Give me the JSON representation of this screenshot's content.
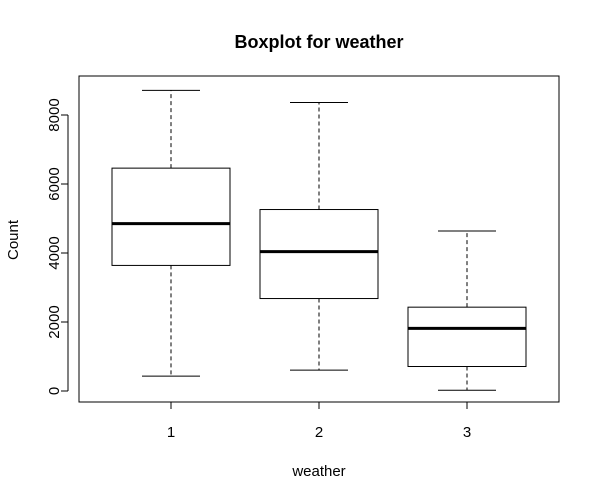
{
  "chart_data": {
    "type": "box",
    "title": "Boxplot for weather",
    "xlabel": "weather",
    "ylabel": "Count",
    "ylim": [
      -300,
      9000
    ],
    "y_ticks": [
      0,
      2000,
      4000,
      6000,
      8000
    ],
    "categories": [
      "1",
      "2",
      "3"
    ],
    "boxes": [
      {
        "category": "1",
        "min": 431,
        "q1": 3640,
        "median": 4850,
        "q3": 6460,
        "max": 8714
      },
      {
        "category": "2",
        "min": 605,
        "q1": 2680,
        "median": 4040,
        "q3": 5260,
        "max": 8362
      },
      {
        "category": "3",
        "min": 22,
        "q1": 710,
        "median": 1817,
        "q3": 2430,
        "max": 4639
      }
    ],
    "grid": false,
    "colors": {
      "stroke": "#000000",
      "fill": "#ffffff",
      "background": "#ffffff"
    }
  }
}
